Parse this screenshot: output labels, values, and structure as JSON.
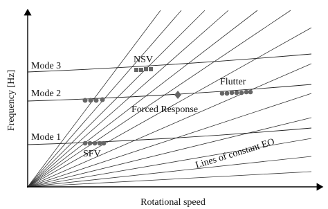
{
  "axes": {
    "x_label": "Rotational speed",
    "y_label": "Frequency [Hz]"
  },
  "modes": [
    "Mode 3",
    "Mode 2",
    "Mode 1"
  ],
  "annotations": {
    "nsv": "NSV",
    "flutter": "Flutter",
    "forced_response": "Forced Response",
    "sfv": "SFV",
    "eo_lines": "Lines of constant EO"
  }
}
